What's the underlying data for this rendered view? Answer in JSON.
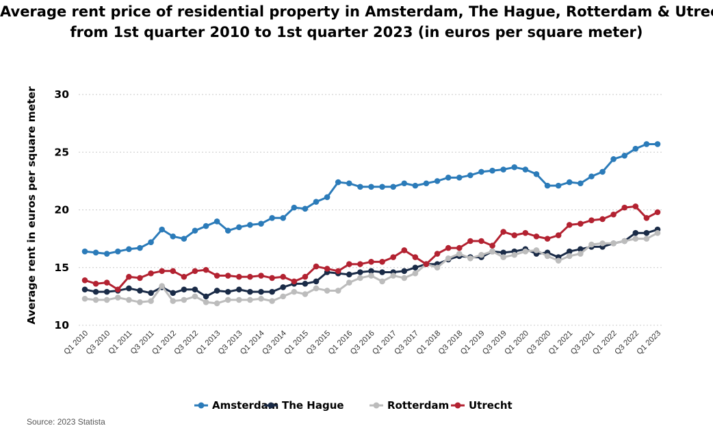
{
  "chart_data": {
    "type": "line",
    "title": "Average rent price of residential property in Amsterdam, The Hague, Rotterdam & Utrecht",
    "subtitle": "from 1st quarter 2010 to 1st quarter 2023 (in euros per square meter)",
    "xlabel": "",
    "ylabel": "Average rent in euros per square meter",
    "ylim": [
      10,
      30
    ],
    "yticks": [
      "10",
      "15",
      "20",
      "25",
      "30"
    ],
    "grid": true,
    "legend_position": "bottom",
    "x": [
      "Q1 2010",
      "Q2 2010",
      "Q3 2010",
      "Q4 2010",
      "Q1 2011",
      "Q2 2011",
      "Q3 2011",
      "Q4 2011",
      "Q1 2012",
      "Q2 2012",
      "Q3 2012",
      "Q4 2012",
      "Q1 2013",
      "Q2 2013",
      "Q3 2013",
      "Q4 2013",
      "Q1 2014",
      "Q2 2014",
      "Q3 2014",
      "Q4 2014",
      "Q1 2015",
      "Q2 2015",
      "Q3 2015",
      "Q4 2015",
      "Q1 2016",
      "Q2 2016",
      "Q3 2016",
      "Q4 2016",
      "Q1 2017",
      "Q2 2017",
      "Q3 2017",
      "Q4 2017",
      "Q1 2018",
      "Q2 2018",
      "Q3 2018",
      "Q4 2018",
      "Q1 2019",
      "Q2 2019",
      "Q3 2019",
      "Q4 2019",
      "Q1 2020",
      "Q2 2020",
      "Q3 2020",
      "Q4 2020",
      "Q1 2021",
      "Q2 2021",
      "Q3 2021",
      "Q4 2021",
      "Q1 2022",
      "Q2 2022",
      "Q3 2022",
      "Q4 2022",
      "Q1 2023"
    ],
    "x_tick_labels": [
      "Q1 2010",
      "",
      "Q3 2010",
      "",
      "Q1 2011",
      "",
      "Q3 2011",
      "",
      "Q1 2012",
      "",
      "Q3 2012",
      "",
      "Q1 2013",
      "",
      "Q3 2013",
      "",
      "Q1 2014",
      "",
      "Q3 2014",
      "",
      "Q1 2015",
      "",
      "Q3 2015",
      "",
      "Q1 2016",
      "",
      "Q3 2016",
      "",
      "Q1 2017",
      "",
      "Q3 2017",
      "",
      "Q1 2018",
      "",
      "Q3 2018",
      "",
      "Q1 2019",
      "",
      "Q3 2019",
      "",
      "Q1 2020",
      "",
      "Q3 2020",
      "",
      "Q1 2021",
      "",
      "Q3 2021",
      "",
      "Q1 2022",
      "",
      "Q3 2022",
      "",
      "Q1 2023"
    ],
    "series": [
      {
        "name": "Amsterdam",
        "color": "#2b7bb9",
        "values": [
          16.4,
          16.3,
          16.2,
          16.4,
          16.6,
          16.7,
          17.2,
          18.3,
          17.7,
          17.5,
          18.2,
          18.6,
          19.0,
          18.2,
          18.5,
          18.7,
          18.8,
          19.3,
          19.3,
          20.2,
          20.1,
          20.7,
          21.1,
          22.4,
          22.3,
          22.0,
          22.0,
          22.0,
          22.0,
          22.3,
          22.1,
          22.3,
          22.5,
          22.8,
          22.8,
          23.0,
          23.3,
          23.4,
          23.5,
          23.7,
          23.5,
          23.1,
          22.1,
          22.1,
          22.4,
          22.3,
          22.9,
          23.3,
          24.4,
          24.7,
          25.3,
          25.7,
          25.7
        ]
      },
      {
        "name": "The Hague",
        "color": "#1a2b47",
        "values": [
          13.1,
          12.9,
          12.9,
          13.0,
          13.2,
          13.0,
          12.8,
          13.3,
          12.8,
          13.1,
          13.1,
          12.5,
          13.0,
          12.9,
          13.1,
          12.9,
          12.9,
          12.9,
          13.3,
          13.6,
          13.6,
          13.8,
          14.6,
          14.5,
          14.4,
          14.6,
          14.7,
          14.6,
          14.6,
          14.7,
          15.0,
          15.3,
          15.3,
          15.7,
          16.0,
          15.9,
          15.9,
          16.4,
          16.3,
          16.4,
          16.6,
          16.2,
          16.3,
          15.9,
          16.4,
          16.6,
          16.8,
          16.8,
          17.1,
          17.3,
          18.0,
          18.0,
          18.3
        ]
      },
      {
        "name": "Rotterdam",
        "color": "#bcbcbc",
        "values": [
          12.3,
          12.2,
          12.2,
          12.4,
          12.2,
          12.0,
          12.1,
          13.4,
          12.1,
          12.2,
          12.5,
          12.0,
          11.9,
          12.2,
          12.2,
          12.2,
          12.3,
          12.1,
          12.5,
          12.9,
          12.7,
          13.2,
          13.0,
          13.0,
          13.7,
          14.1,
          14.3,
          13.8,
          14.3,
          14.1,
          14.5,
          15.3,
          15.0,
          15.8,
          16.2,
          15.8,
          16.1,
          16.4,
          15.9,
          16.1,
          16.4,
          16.5,
          16.0,
          15.6,
          16.0,
          16.2,
          17.0,
          17.1,
          17.1,
          17.3,
          17.5,
          17.5,
          18.0
        ]
      },
      {
        "name": "Utrecht",
        "color": "#b32231",
        "values": [
          13.9,
          13.6,
          13.7,
          13.1,
          14.2,
          14.1,
          14.5,
          14.7,
          14.7,
          14.2,
          14.7,
          14.8,
          14.3,
          14.3,
          14.2,
          14.2,
          14.3,
          14.1,
          14.2,
          13.8,
          14.2,
          15.1,
          14.9,
          14.7,
          15.3,
          15.3,
          15.5,
          15.5,
          15.9,
          16.5,
          15.9,
          15.3,
          16.2,
          16.7,
          16.7,
          17.3,
          17.3,
          16.9,
          18.1,
          17.8,
          18.0,
          17.7,
          17.5,
          17.8,
          18.7,
          18.8,
          19.1,
          19.2,
          19.6,
          20.2,
          20.3,
          19.3,
          19.8
        ]
      }
    ]
  },
  "footer": {
    "source": "Source: 2023 Statista"
  }
}
